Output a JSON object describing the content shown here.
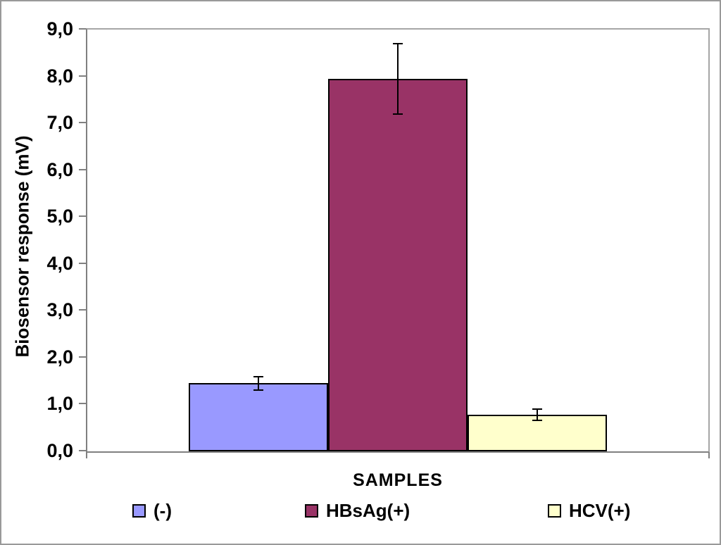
{
  "chart_data": {
    "type": "bar",
    "title": "",
    "xlabel": "SAMPLES",
    "ylabel": "Biosensor response (mV)",
    "categories": [
      "SAMPLES"
    ],
    "series": [
      {
        "name": "(-)",
        "value": 1.45,
        "error": 0.15,
        "color": "#9999FF"
      },
      {
        "name": "HBsAg(+)",
        "value": 7.95,
        "error": 0.75,
        "color": "#993366"
      },
      {
        "name": "HCV(+)",
        "value": 0.78,
        "error": 0.12,
        "color": "#FFFFCC"
      }
    ],
    "ylim": [
      0,
      9
    ],
    "ytick_step": 1.0,
    "ytick_labels": [
      "0,0",
      "1,0",
      "2,0",
      "3,0",
      "4,0",
      "5,0",
      "6,0",
      "7,0",
      "8,0",
      "9,0"
    ],
    "decimal_separator": ",",
    "grid": false,
    "error_bars": true,
    "legend_position": "bottom",
    "colors": {
      "bar_border": "#000000",
      "error_bar": "#000000",
      "axis_line": "#808080",
      "plot_border": "#A6A6A6",
      "text": "#000000",
      "background": "#FFFFFF",
      "outer_border": "#999999"
    }
  }
}
